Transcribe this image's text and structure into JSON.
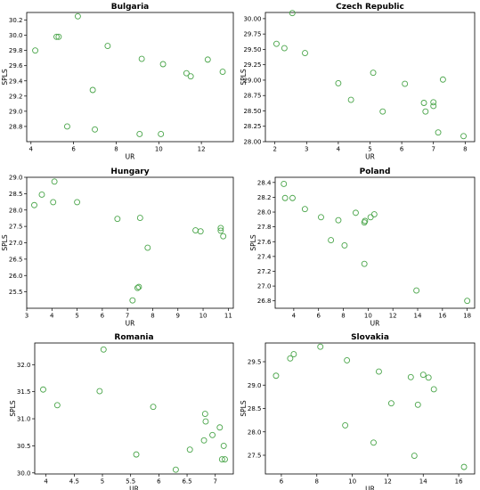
{
  "colors": {
    "marker": "#4aa54a",
    "axes": "#000000"
  },
  "chart_data": [
    {
      "type": "scatter",
      "title": "Bulgaria",
      "xlabel": "UR",
      "ylabel": "SPLS",
      "xlim": [
        3.8,
        13.5
      ],
      "ylim": [
        28.6,
        30.3
      ],
      "xticks": [
        4,
        6,
        8,
        10,
        12
      ],
      "yticks": [
        28.8,
        29.0,
        29.2,
        29.4,
        29.6,
        29.8,
        30.0,
        30.2
      ],
      "ytick_labels": [
        "28.8",
        "29.0",
        "29.2",
        "29.4",
        "29.6",
        "29.8",
        "30.0",
        "30.2"
      ],
      "grid": false,
      "points": [
        [
          4.2,
          29.8
        ],
        [
          5.2,
          29.98
        ],
        [
          5.3,
          29.98
        ],
        [
          5.7,
          28.8
        ],
        [
          6.2,
          30.25
        ],
        [
          6.9,
          29.28
        ],
        [
          7.0,
          28.76
        ],
        [
          7.6,
          29.86
        ],
        [
          9.1,
          28.7
        ],
        [
          9.2,
          29.69
        ],
        [
          10.1,
          28.7
        ],
        [
          10.2,
          29.62
        ],
        [
          11.3,
          29.5
        ],
        [
          11.5,
          29.46
        ],
        [
          12.3,
          29.68
        ],
        [
          13.0,
          29.52
        ]
      ]
    },
    {
      "type": "scatter",
      "title": "Czech Republic",
      "xlabel": "UR",
      "ylabel": "SPLS",
      "xlim": [
        1.7,
        8.3
      ],
      "ylim": [
        28.0,
        30.1
      ],
      "xticks": [
        2,
        3,
        4,
        5,
        6,
        7,
        8
      ],
      "yticks": [
        28.0,
        28.25,
        28.5,
        28.75,
        29.0,
        29.25,
        29.5,
        29.75,
        30.0
      ],
      "ytick_labels": [
        "28.00",
        "28.25",
        "28.50",
        "28.75",
        "29.00",
        "29.25",
        "29.50",
        "29.75",
        "30.00"
      ],
      "grid": false,
      "points": [
        [
          2.05,
          29.59
        ],
        [
          2.3,
          29.52
        ],
        [
          2.55,
          30.09
        ],
        [
          2.95,
          29.44
        ],
        [
          4.0,
          28.95
        ],
        [
          4.4,
          28.68
        ],
        [
          5.1,
          29.12
        ],
        [
          5.4,
          28.49
        ],
        [
          6.1,
          28.94
        ],
        [
          6.7,
          28.63
        ],
        [
          6.75,
          28.49
        ],
        [
          7.0,
          28.64
        ],
        [
          7.0,
          28.58
        ],
        [
          7.15,
          28.15
        ],
        [
          7.3,
          29.01
        ],
        [
          7.95,
          28.09
        ]
      ]
    },
    {
      "type": "scatter",
      "title": "Hungary",
      "xlabel": "UR",
      "ylabel": "SPLS",
      "xlim": [
        3.0,
        11.2
      ],
      "ylim": [
        25.0,
        29.0
      ],
      "xticks": [
        3,
        4,
        5,
        6,
        7,
        8,
        9,
        10,
        11
      ],
      "yticks": [
        25.5,
        26.0,
        26.5,
        27.0,
        27.5,
        28.0,
        28.5,
        29.0
      ],
      "ytick_labels": [
        "25.5",
        "26.0",
        "26.5",
        "27.0",
        "27.5",
        "28.0",
        "28.5",
        "29.0"
      ],
      "grid": false,
      "points": [
        [
          3.3,
          28.15
        ],
        [
          3.6,
          28.47
        ],
        [
          4.05,
          28.24
        ],
        [
          4.1,
          28.87
        ],
        [
          5.0,
          28.24
        ],
        [
          6.6,
          27.73
        ],
        [
          7.2,
          25.24
        ],
        [
          7.4,
          25.62
        ],
        [
          7.45,
          25.65
        ],
        [
          7.5,
          27.76
        ],
        [
          7.8,
          26.85
        ],
        [
          9.7,
          27.38
        ],
        [
          9.9,
          27.35
        ],
        [
          10.7,
          27.45
        ],
        [
          10.7,
          27.37
        ],
        [
          10.8,
          27.2
        ]
      ]
    },
    {
      "type": "scatter",
      "title": "Poland",
      "xlabel": "UR",
      "ylabel": "SPLS",
      "xlim": [
        2.5,
        18.6
      ],
      "ylim": [
        26.7,
        28.47
      ],
      "xticks": [
        4,
        6,
        8,
        10,
        12,
        14,
        16,
        18
      ],
      "yticks": [
        26.8,
        27.0,
        27.2,
        27.4,
        27.6,
        27.8,
        28.0,
        28.2,
        28.4
      ],
      "ytick_labels": [
        "26.8",
        "27.0",
        "27.2",
        "27.4",
        "27.6",
        "27.8",
        "28.0",
        "28.2",
        "28.4"
      ],
      "grid": false,
      "points": [
        [
          3.2,
          28.38
        ],
        [
          3.3,
          28.19
        ],
        [
          3.9,
          28.19
        ],
        [
          4.9,
          28.04
        ],
        [
          6.2,
          27.93
        ],
        [
          7.0,
          27.62
        ],
        [
          7.6,
          27.89
        ],
        [
          8.1,
          27.55
        ],
        [
          9.0,
          27.99
        ],
        [
          9.7,
          27.86
        ],
        [
          9.75,
          27.88
        ],
        [
          9.7,
          27.3
        ],
        [
          10.2,
          27.93
        ],
        [
          10.5,
          27.97
        ],
        [
          13.9,
          26.94
        ],
        [
          18.0,
          26.8
        ]
      ]
    },
    {
      "type": "scatter",
      "title": "Romania",
      "xlabel": "UR",
      "ylabel": "SPLS",
      "xlim": [
        3.8,
        7.32
      ],
      "ylim": [
        29.98,
        32.4
      ],
      "xticks": [
        4.0,
        4.5,
        5.0,
        5.5,
        6.0,
        6.5,
        7.0
      ],
      "yticks": [
        30.0,
        30.5,
        31.0,
        31.5,
        32.0
      ],
      "ytick_labels": [
        "30.0",
        "30.5",
        "31.0",
        "31.5",
        "32.0"
      ],
      "grid": false,
      "points": [
        [
          3.95,
          31.54
        ],
        [
          4.2,
          31.25
        ],
        [
          4.95,
          31.51
        ],
        [
          5.02,
          32.28
        ],
        [
          5.6,
          30.34
        ],
        [
          5.9,
          31.22
        ],
        [
          6.3,
          30.06
        ],
        [
          6.55,
          30.43
        ],
        [
          6.8,
          30.6
        ],
        [
          6.82,
          31.09
        ],
        [
          6.83,
          30.95
        ],
        [
          6.95,
          30.7
        ],
        [
          7.08,
          30.84
        ],
        [
          7.12,
          30.25
        ],
        [
          7.17,
          30.25
        ],
        [
          7.15,
          30.5
        ]
      ]
    },
    {
      "type": "scatter",
      "title": "Slovakia",
      "xlabel": "UR",
      "ylabel": "SPLS",
      "xlim": [
        5.1,
        16.9
      ],
      "ylim": [
        27.1,
        29.9
      ],
      "xticks": [
        6,
        8,
        10,
        12,
        14,
        16
      ],
      "yticks": [
        27.5,
        28.0,
        28.5,
        29.0,
        29.5
      ],
      "ytick_labels": [
        "27.5",
        "28.0",
        "28.5",
        "29.0",
        "29.5"
      ],
      "grid": false,
      "points": [
        [
          5.7,
          29.2
        ],
        [
          6.5,
          29.57
        ],
        [
          6.7,
          29.66
        ],
        [
          8.2,
          29.82
        ],
        [
          9.6,
          28.14
        ],
        [
          9.7,
          29.53
        ],
        [
          11.2,
          27.77
        ],
        [
          11.5,
          29.29
        ],
        [
          12.2,
          28.61
        ],
        [
          13.3,
          29.17
        ],
        [
          13.5,
          27.49
        ],
        [
          13.7,
          28.58
        ],
        [
          14.0,
          29.22
        ],
        [
          14.3,
          29.16
        ],
        [
          14.6,
          28.91
        ],
        [
          16.3,
          27.25
        ]
      ]
    }
  ]
}
